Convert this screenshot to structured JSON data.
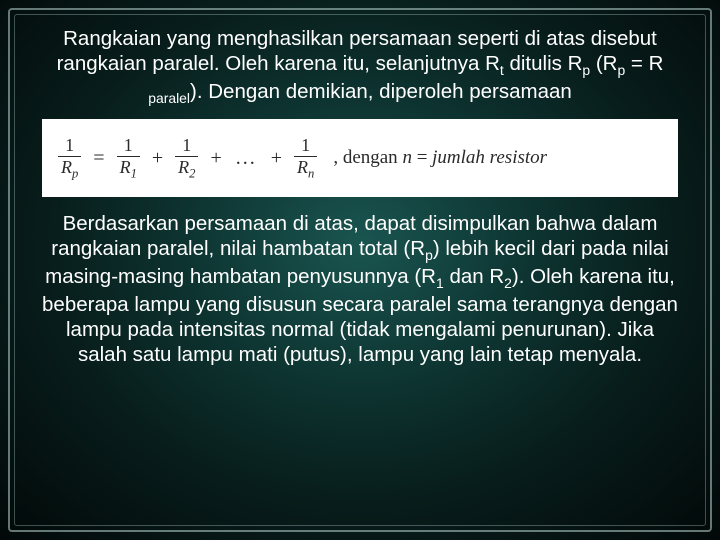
{
  "slide": {
    "background": {
      "gradient_center": "#1a5550",
      "gradient_mid": "#0d3330",
      "gradient_outer": "#020808"
    },
    "frame": {
      "outer_border_color": "rgba(200,230,225,0.5)",
      "inner_border_color": "rgba(180,215,210,0.35)"
    },
    "text_color": "#ffffff",
    "font_size_pt": 15,
    "para1_parts": {
      "a": "Rangkaian yang menghasilkan persamaan seperti di atas disebut rangkaian paralel. Oleh karena itu, selanjutnya R",
      "sub_t": "t",
      "b": " ditulis R",
      "sub_p1": "p",
      "c": " (R",
      "sub_p2": "p",
      "d": " = R ",
      "sub_par": "paralel",
      "e": "). Dengan demikian, diperoleh persamaan"
    },
    "equation": {
      "band_bg": "#ffffff",
      "text_color": "#2a2a2a",
      "lhs_den": "R",
      "lhs_sub": "p",
      "terms": [
        {
          "num": "1",
          "den": "R",
          "sub": "1"
        },
        {
          "num": "1",
          "den": "R",
          "sub": "2"
        }
      ],
      "ellipsis": "...",
      "last": {
        "num": "1",
        "den": "R",
        "sub": "n"
      },
      "annotation_prefix": ", dengan ",
      "annotation_var": "n",
      "annotation_eq": " = ",
      "annotation_value": "jumlah resistor"
    },
    "para2_parts": {
      "a": "Berdasarkan persamaan di atas, dapat disimpulkan bahwa dalam rangkaian paralel, nilai hambatan total (R",
      "sub_p": "p",
      "b": ") lebih kecil dari pada nilai masing-masing hambatan penyusunnya (R",
      "sub_1": "1",
      "c": " dan R",
      "sub_2": "2",
      "d": "). Oleh karena itu, beberapa lampu yang disusun secara paralel sama terangnya dengan lampu pada intensitas normal (tidak mengalami penurunan). Jika salah satu lampu mati (putus), lampu yang lain tetap menyala."
    }
  }
}
